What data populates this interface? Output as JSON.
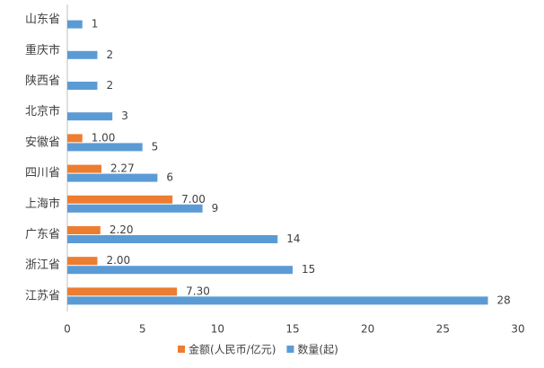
{
  "chart_data": {
    "type": "hbar",
    "categories": [
      "山东省",
      "重庆市",
      "陕西省",
      "北京市",
      "安徽省",
      "四川省",
      "上海市",
      "广东省",
      "浙江省",
      "江苏省"
    ],
    "series": [
      {
        "name": "金额(人民币/亿元)",
        "color": "#ed7d31",
        "values": [
          null,
          null,
          null,
          null,
          1.0,
          2.27,
          7.0,
          2.2,
          2.0,
          7.3
        ],
        "value_labels": [
          null,
          null,
          null,
          null,
          "1.00",
          "2.27",
          "7.00",
          "2.20",
          "2.00",
          "7.30"
        ]
      },
      {
        "name": "数量(起)",
        "color": "#5b9bd5",
        "values": [
          1,
          2,
          2,
          3,
          5,
          6,
          9,
          14,
          15,
          28
        ]
      }
    ],
    "xlim": [
      0,
      30
    ],
    "xticks": [
      0,
      5,
      10,
      15,
      20,
      25,
      30
    ],
    "legend": "bottom"
  }
}
